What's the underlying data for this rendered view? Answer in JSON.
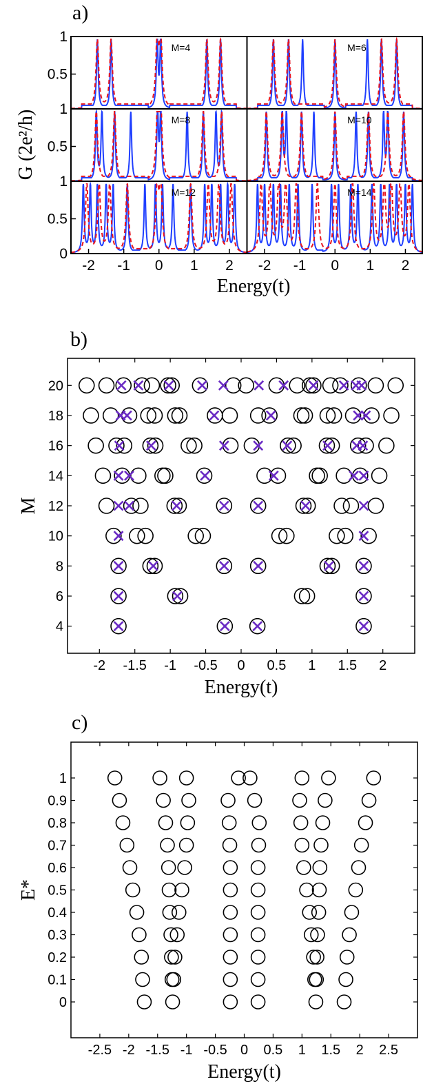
{
  "figure": {
    "panel_a_label": "a)",
    "panel_b_label": "b)",
    "panel_c_label": "c)"
  },
  "chart_data": [
    {
      "id": "a",
      "type": "line",
      "xlabel": "Energy(t)",
      "ylabel": "G (2e²/h)",
      "xlim": [
        -2.5,
        2.5
      ],
      "ylim": [
        0,
        1
      ],
      "xticks": [
        -2,
        -1,
        0,
        1,
        2
      ],
      "yticks": [
        0,
        0.5,
        1
      ],
      "series_styles": [
        {
          "style": "solid",
          "color": "#1f3fff"
        },
        {
          "style": "dashed",
          "color": "#e8141e"
        }
      ],
      "subplots": [
        {
          "label": "M=4",
          "row": 0,
          "col": 0,
          "solid_peaks": [
            -1.75,
            -1.36,
            -0.05,
            0.05,
            1.36,
            1.75
          ],
          "dashed_peaks": [
            -1.75,
            -1.36,
            -0.05,
            0.05,
            1.36,
            1.75
          ],
          "gap": [
            -0.3,
            0.3
          ]
        },
        {
          "label": "M=6",
          "row": 0,
          "col": 1,
          "solid_peaks": [
            -1.75,
            -1.32,
            -0.92,
            0.0,
            0.92,
            1.32,
            1.75
          ],
          "dashed_peaks": [
            -1.75,
            -1.32,
            0.0,
            1.32,
            1.75
          ],
          "gap": [
            -0.3,
            0.3
          ]
        },
        {
          "label": "M=8",
          "row": 1,
          "col": 0,
          "solid_peaks": [
            -1.78,
            -1.62,
            -1.26,
            -0.8,
            -0.04,
            0.05,
            0.8,
            1.26,
            1.62,
            1.78
          ],
          "dashed_peaks": [
            -1.78,
            -1.26,
            -0.04,
            0.05,
            1.26,
            1.78
          ],
          "gap": [
            -0.3,
            0.3
          ]
        },
        {
          "label": "M=10",
          "row": 1,
          "col": 1,
          "solid_peaks": [
            -1.95,
            -1.5,
            -1.38,
            -0.95,
            -0.6,
            0.0,
            0.6,
            0.95,
            1.38,
            1.5,
            1.95
          ],
          "dashed_peaks": [
            -1.95,
            -1.5,
            -0.95,
            0.0,
            0.95,
            1.5,
            1.95
          ],
          "gap": [
            -0.35,
            0.35
          ]
        },
        {
          "label": "M=12",
          "row": 2,
          "col": 0,
          "solid_peaks": [
            -2.15,
            -1.95,
            -1.75,
            -1.5,
            -1.3,
            -0.9,
            -0.4,
            -0.1,
            0.1,
            0.4,
            0.9,
            1.3,
            1.5,
            1.75,
            1.95,
            2.15
          ],
          "dashed_peaks": [
            -2.05,
            -1.7,
            -1.4,
            -0.9,
            -0.05,
            0.05,
            0.9,
            1.4,
            1.7,
            2.05
          ],
          "gap": [
            -0.3,
            0.3
          ]
        },
        {
          "label": "M=14",
          "row": 2,
          "col": 1,
          "solid_peaks": [
            -2.2,
            -2.0,
            -1.75,
            -1.55,
            -1.3,
            -1.05,
            -0.65,
            -0.1,
            0.1,
            0.45,
            0.65,
            1.05,
            1.3,
            1.55,
            1.75,
            2.0,
            2.2
          ],
          "dashed_peaks": [
            -2.1,
            -1.85,
            -1.6,
            -1.4,
            -1.1,
            -0.5,
            0.0,
            0.5,
            1.1,
            1.4,
            1.6,
            1.85,
            2.1
          ],
          "gap": [
            -0.35,
            0.35
          ]
        }
      ]
    },
    {
      "id": "b",
      "type": "scatter",
      "xlabel": "Energy(t)",
      "ylabel": "M",
      "xlim": [
        -2.45,
        2.45
      ],
      "ylim": [
        2.2,
        21.8
      ],
      "xticks": [
        -2,
        -1.5,
        -1,
        -0.5,
        0,
        0.5,
        1,
        1.5,
        2
      ],
      "yticks": [
        4,
        6,
        8,
        10,
        12,
        14,
        16,
        18,
        20
      ],
      "series": [
        {
          "marker": "circle",
          "points": [
            {
              "y": 4,
              "x": [
                -1.73,
                -0.23,
                0.23,
                1.73
              ]
            },
            {
              "y": 6,
              "x": [
                -1.73,
                -0.93,
                -0.86,
                0.86,
                0.93,
                1.73
              ]
            },
            {
              "y": 8,
              "x": [
                -1.73,
                -1.28,
                -1.22,
                -0.24,
                0.24,
                1.22,
                1.28,
                1.73
              ]
            },
            {
              "y": 10,
              "x": [
                -1.8,
                -1.47,
                -1.35,
                -0.64,
                -0.54,
                0.54,
                0.64,
                1.35,
                1.47,
                1.8
              ]
            },
            {
              "y": 12,
              "x": [
                -1.9,
                -1.55,
                -1.42,
                -0.94,
                -0.88,
                -0.24,
                0.24,
                0.88,
                0.94,
                1.42,
                1.55,
                1.9
              ]
            },
            {
              "y": 14,
              "x": [
                -1.95,
                -1.68,
                -1.45,
                -1.11,
                -1.07,
                -0.52,
                0.33,
                0.52,
                1.07,
                1.11,
                1.45,
                1.68,
                1.95
              ]
            },
            {
              "y": 16,
              "x": [
                -2.05,
                -1.76,
                -1.65,
                -1.28,
                -1.21,
                -0.74,
                -0.66,
                -0.15,
                0.15,
                0.66,
                0.74,
                1.21,
                1.28,
                1.65,
                1.76,
                2.05
              ]
            },
            {
              "y": 18,
              "x": [
                -2.12,
                -1.84,
                -1.58,
                -1.31,
                -1.22,
                -0.93,
                -0.87,
                -0.37,
                -0.16,
                0.24,
                0.4,
                0.85,
                0.9,
                1.22,
                1.31,
                1.58,
                1.84,
                2.12
              ]
            },
            {
              "y": 20,
              "x": [
                -2.18,
                -1.9,
                -1.66,
                -1.4,
                -1.26,
                -1.03,
                -0.98,
                -0.58,
                -0.11,
                0.07,
                0.5,
                0.79,
                0.97,
                1.02,
                1.26,
                1.4,
                1.66,
                1.9,
                2.18
              ]
            }
          ]
        },
        {
          "marker": "x",
          "color": "#6a2bc4",
          "points": [
            {
              "y": 4,
              "x": [
                -1.73,
                -0.23,
                0.23,
                1.73
              ]
            },
            {
              "y": 6,
              "x": [
                -1.73,
                -0.9,
                1.73
              ]
            },
            {
              "y": 8,
              "x": [
                -1.73,
                -1.24,
                -0.24,
                0.24,
                1.24,
                1.73
              ]
            },
            {
              "y": 10,
              "x": [
                -1.73,
                1.73
              ]
            },
            {
              "y": 12,
              "x": [
                -1.73,
                -1.58,
                -0.91,
                -0.24,
                0.24,
                0.91,
                1.73
              ]
            },
            {
              "y": 14,
              "x": [
                -1.73,
                -1.58,
                -0.51,
                0.46,
                1.59,
                1.73
              ]
            },
            {
              "y": 16,
              "x": [
                -1.72,
                -1.27,
                -0.24,
                0.24,
                0.65,
                1.22,
                1.63,
                1.72
              ]
            },
            {
              "y": 18,
              "x": [
                -1.7,
                -1.61,
                -0.38,
                0.42,
                1.65,
                1.76
              ]
            },
            {
              "y": 20,
              "x": [
                -1.69,
                -1.45,
                -1.02,
                -0.55,
                -0.25,
                0.25,
                0.6,
                1.02,
                1.45,
                1.62,
                1.7
              ]
            }
          ]
        }
      ]
    },
    {
      "id": "c",
      "type": "scatter",
      "xlabel": "Energy(t)",
      "ylabel": "E*",
      "xlim": [
        -3.0,
        3.0
      ],
      "ylim": [
        -0.16,
        1.16
      ],
      "xticks": [
        -2.5,
        -2,
        -1.5,
        -1,
        -0.5,
        0,
        0.5,
        1,
        1.5,
        2,
        2.5
      ],
      "yticks": [
        0,
        0.1,
        0.2,
        0.3,
        0.4,
        0.5,
        0.6,
        0.7,
        0.8,
        0.9,
        1
      ],
      "series": [
        {
          "marker": "circle",
          "points": [
            {
              "y": 0,
              "x": [
                -1.73,
                -1.24,
                -0.24,
                0.24,
                1.24,
                1.73
              ]
            },
            {
              "y": 0.1,
              "x": [
                -1.76,
                -1.25,
                -1.22,
                -0.24,
                0.24,
                1.22,
                1.25,
                1.76
              ]
            },
            {
              "y": 0.2,
              "x": [
                -1.78,
                -1.26,
                -1.2,
                -0.24,
                0.24,
                1.2,
                1.26,
                1.78
              ]
            },
            {
              "y": 0.3,
              "x": [
                -1.82,
                -1.27,
                -1.16,
                -0.24,
                0.24,
                1.16,
                1.27,
                1.82
              ]
            },
            {
              "y": 0.4,
              "x": [
                -1.86,
                -1.29,
                -1.13,
                -0.24,
                0.24,
                1.13,
                1.29,
                1.86
              ]
            },
            {
              "y": 0.5,
              "x": [
                -1.93,
                -1.3,
                -1.08,
                -0.24,
                0.24,
                1.08,
                1.3,
                1.93
              ]
            },
            {
              "y": 0.6,
              "x": [
                -1.98,
                -1.31,
                -1.03,
                -0.24,
                0.24,
                1.03,
                1.31,
                1.98
              ]
            },
            {
              "y": 0.7,
              "x": [
                -2.03,
                -1.33,
                -1.0,
                -0.25,
                0.25,
                1.0,
                1.33,
                2.03
              ]
            },
            {
              "y": 0.8,
              "x": [
                -2.1,
                -1.36,
                -0.98,
                -0.26,
                0.26,
                0.98,
                1.36,
                2.1
              ]
            },
            {
              "y": 0.9,
              "x": [
                -2.16,
                -1.4,
                -0.96,
                -0.28,
                0.18,
                0.96,
                1.4,
                2.16
              ]
            },
            {
              "y": 1,
              "x": [
                -2.24,
                -1.46,
                -1.0,
                -0.1,
                0.1,
                1.0,
                1.46,
                2.24
              ]
            }
          ]
        }
      ]
    }
  ]
}
